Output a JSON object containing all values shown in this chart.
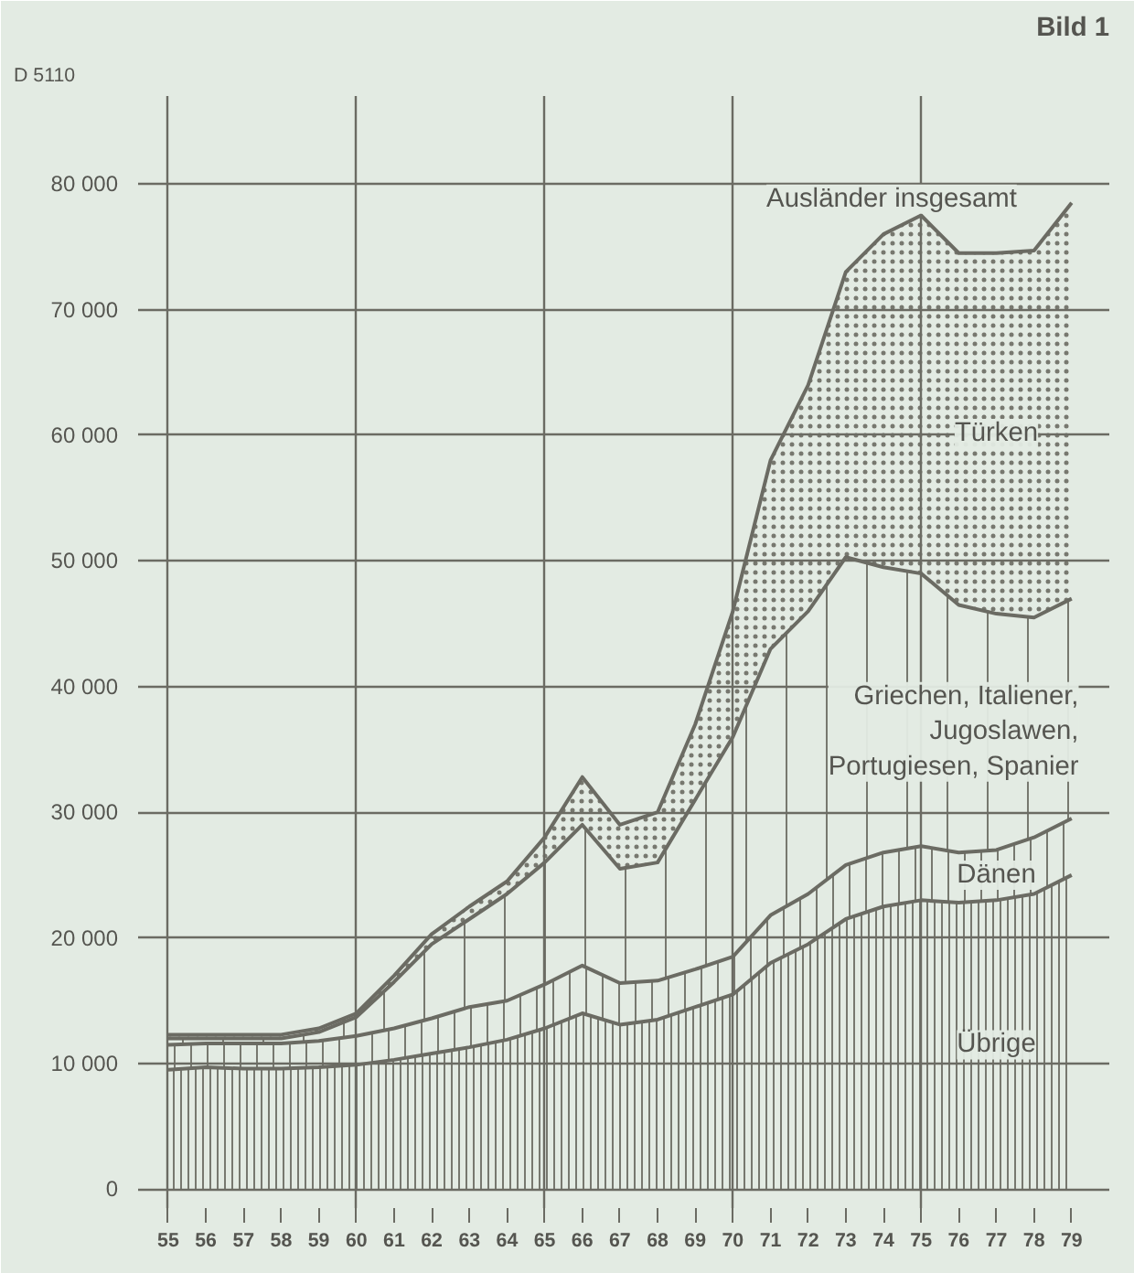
{
  "chart_data": {
    "type": "area",
    "stacked": true,
    "x": [
      55,
      56,
      57,
      58,
      59,
      60,
      61,
      62,
      63,
      64,
      65,
      66,
      67,
      68,
      69,
      70,
      71,
      72,
      73,
      74,
      75,
      76,
      77,
      78,
      79
    ],
    "series": [
      {
        "name": "Übrige",
        "color": "#6b6b63",
        "values": [
          9500,
          9700,
          9600,
          9600,
          9700,
          9900,
          10300,
          10800,
          11300,
          11900,
          12800,
          14000,
          13100,
          13500,
          14500,
          15500,
          18000,
          19500,
          21500,
          22500,
          23000,
          22800,
          23000,
          23500,
          25000
        ]
      },
      {
        "name": "Dänen",
        "color": "#6b6b63",
        "values": [
          2000,
          1900,
          2000,
          2000,
          2100,
          2300,
          2500,
          2800,
          3200,
          3100,
          3500,
          3800,
          3300,
          3100,
          3000,
          3000,
          3800,
          4000,
          4300,
          4300,
          4300,
          4000,
          4000,
          4500,
          4500
        ]
      },
      {
        "name": "Griechen, Italiener,\nJugoslawen,\nPortugiesen, Spanier",
        "color": "#6b6b63",
        "values": [
          500,
          400,
          400,
          400,
          700,
          1500,
          3700,
          5900,
          7000,
          8500,
          9700,
          11200,
          9100,
          9400,
          13500,
          17500,
          21200,
          22500,
          24500,
          22700,
          21700,
          19700,
          18800,
          17500,
          17500
        ]
      },
      {
        "name": "Türken",
        "color": "#6b6b63",
        "values": [
          300,
          300,
          300,
          300,
          300,
          300,
          500,
          800,
          1000,
          1000,
          2000,
          3800,
          3500,
          4000,
          6000,
          10000,
          15000,
          18000,
          22700,
          26500,
          28500,
          28000,
          28700,
          29200,
          31500
        ]
      }
    ],
    "xlim": [
      54.2,
      80
    ],
    "xticks": [
      55,
      56,
      57,
      58,
      59,
      60,
      61,
      62,
      63,
      64,
      65,
      66,
      67,
      68,
      69,
      70,
      71,
      72,
      73,
      74,
      75,
      76,
      77,
      78,
      79
    ],
    "ylim": [
      -1500,
      87000
    ],
    "yticks": [
      {
        "value": 0,
        "label": "0"
      },
      {
        "value": 10000,
        "label": "10 000"
      },
      {
        "value": 20000,
        "label": "20 000"
      },
      {
        "value": 30000,
        "label": "30 000"
      },
      {
        "value": 40000,
        "label": "40 000"
      },
      {
        "value": 50000,
        "label": "50 000"
      },
      {
        "value": 60000,
        "label": "60 000"
      },
      {
        "value": 70000,
        "label": "70 000"
      },
      {
        "value": 80000,
        "label": "80 000"
      }
    ],
    "grid": true,
    "annotations": [
      "D 5110",
      "Bild 1",
      "Ausländer insgesamt"
    ]
  }
}
